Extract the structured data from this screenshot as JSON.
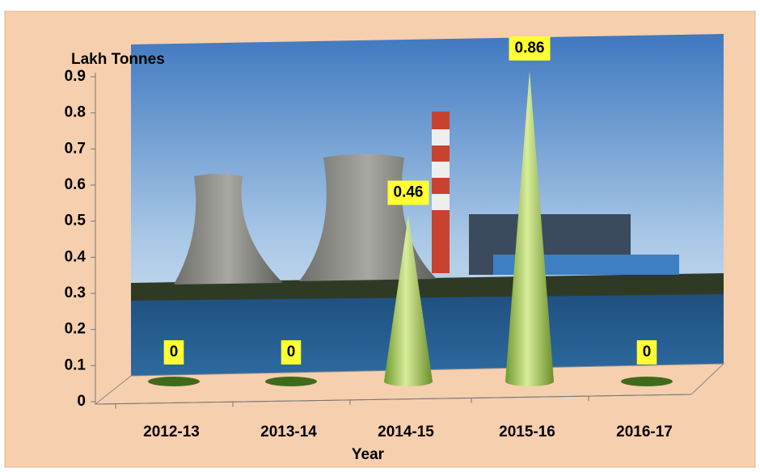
{
  "chart_data": {
    "type": "cone",
    "y_label": "Lakh Tonnes",
    "x_label": "Year",
    "categories": [
      "2012-13",
      "2013-14",
      "2014-15",
      "2015-16",
      "2016-17"
    ],
    "values": [
      0,
      0,
      0.46,
      0.86,
      0
    ],
    "color": "#9cc25a",
    "ylim": [
      0,
      0.9
    ],
    "yticks": [
      0,
      0.1,
      0.2,
      0.3,
      0.4,
      0.5,
      0.6,
      0.7,
      0.8,
      0.9
    ]
  }
}
